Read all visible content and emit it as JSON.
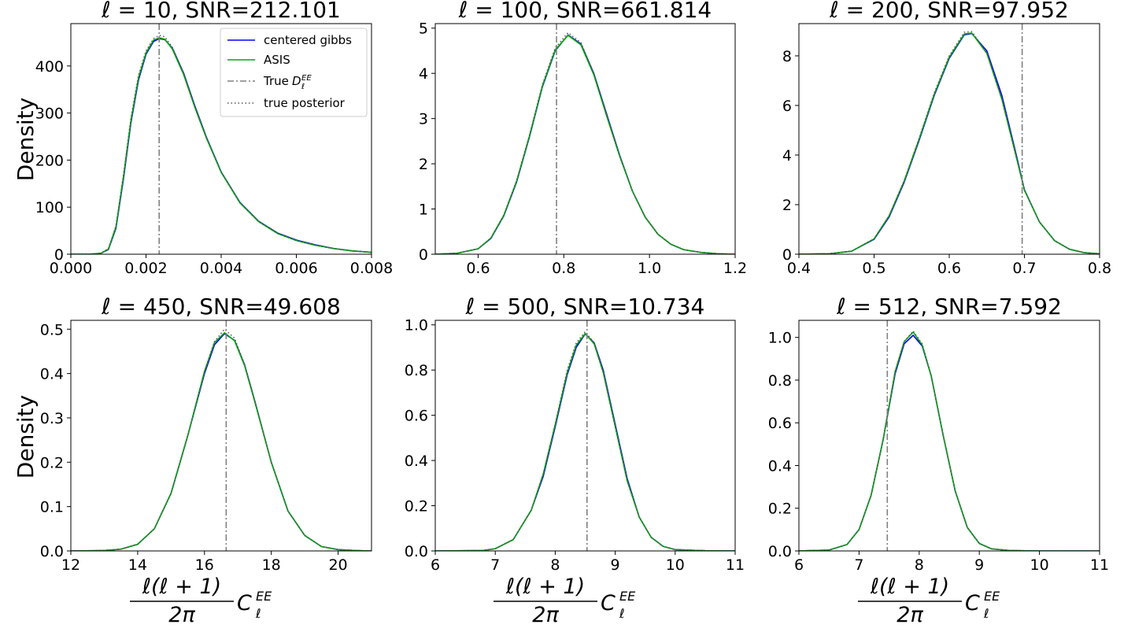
{
  "figure": {
    "ylabel": "Density",
    "xlabel": {
      "frac_num": "ℓ(ℓ + 1)",
      "frac_den": "2π",
      "sym": "C",
      "sup": "EE",
      "sub": "ℓ"
    },
    "legend": {
      "placement": "upper-right of first panel",
      "entries": [
        {
          "label": "centered gibbs",
          "color": "#0000ff",
          "style": "solid"
        },
        {
          "label": "ASIS",
          "color": "#00aa00",
          "style": "solid"
        },
        {
          "label": "True ",
          "math_sym": "D",
          "math_sub": "ℓ",
          "math_sup": "EE",
          "color": "#808080",
          "style": "dashdot"
        },
        {
          "label": "true posterior",
          "color": "#555555",
          "style": "dotted"
        }
      ]
    }
  },
  "chart_data": [
    {
      "type": "line",
      "title": "ℓ = 10, SNR=212.101",
      "xlim": [
        0.0,
        0.008
      ],
      "ylim": [
        0,
        490
      ],
      "xticks": [
        0.0,
        0.002,
        0.004,
        0.006,
        0.008
      ],
      "xtick_labels": [
        "0.000",
        "0.002",
        "0.004",
        "0.006",
        "0.008"
      ],
      "yticks": [
        0,
        100,
        200,
        300,
        400
      ],
      "ytick_labels": [
        "0",
        "100",
        "200",
        "300",
        "400"
      ],
      "true_value": 0.00235,
      "series": [
        {
          "name": "centered gibbs",
          "x": [
            0.0,
            0.0005,
            0.0008,
            0.001,
            0.0012,
            0.0014,
            0.0016,
            0.0018,
            0.002,
            0.0022,
            0.00235,
            0.0025,
            0.0027,
            0.003,
            0.0033,
            0.0036,
            0.004,
            0.0045,
            0.005,
            0.0055,
            0.006,
            0.0065,
            0.007,
            0.0075,
            0.008
          ],
          "y": [
            0,
            0,
            2,
            10,
            55,
            160,
            280,
            370,
            425,
            452,
            458,
            456,
            438,
            385,
            315,
            250,
            175,
            110,
            70,
            45,
            30,
            20,
            12,
            7,
            4
          ]
        },
        {
          "name": "ASIS",
          "x": [
            0.0,
            0.0005,
            0.0008,
            0.001,
            0.0012,
            0.0014,
            0.0016,
            0.0018,
            0.002,
            0.0022,
            0.00235,
            0.0025,
            0.0027,
            0.003,
            0.0033,
            0.0036,
            0.004,
            0.0045,
            0.005,
            0.0055,
            0.006,
            0.0065,
            0.007,
            0.0075,
            0.008
          ],
          "y": [
            0,
            0,
            2,
            11,
            58,
            165,
            285,
            375,
            428,
            455,
            460,
            457,
            436,
            382,
            312,
            248,
            174,
            109,
            69,
            44,
            29,
            19,
            12,
            7,
            4
          ]
        },
        {
          "name": "true posterior",
          "x": [
            0.0,
            0.0005,
            0.0008,
            0.001,
            0.0012,
            0.0014,
            0.0016,
            0.0018,
            0.002,
            0.0022,
            0.00235,
            0.0025,
            0.0027,
            0.003,
            0.0033,
            0.0036,
            0.004,
            0.0045,
            0.005,
            0.0055,
            0.006,
            0.0065,
            0.007,
            0.0075,
            0.008
          ],
          "y": [
            0,
            0,
            2,
            12,
            60,
            168,
            290,
            380,
            432,
            458,
            465,
            462,
            440,
            385,
            313,
            249,
            174,
            109,
            69,
            44,
            29,
            19,
            12,
            7,
            4
          ]
        }
      ]
    },
    {
      "type": "line",
      "title": "ℓ = 100, SNR=661.814",
      "xlim": [
        0.5,
        1.2
      ],
      "ylim": [
        0,
        5.1
      ],
      "xticks": [
        0.6,
        0.8,
        1.0,
        1.2
      ],
      "xtick_labels": [
        "0.6",
        "0.8",
        "1.0",
        "1.2"
      ],
      "yticks": [
        0,
        1,
        2,
        3,
        4,
        5
      ],
      "ytick_labels": [
        "0",
        "1",
        "2",
        "3",
        "4",
        "5"
      ],
      "true_value": 0.783,
      "series": [
        {
          "name": "centered gibbs",
          "x": [
            0.5,
            0.55,
            0.6,
            0.63,
            0.66,
            0.69,
            0.72,
            0.75,
            0.78,
            0.81,
            0.84,
            0.87,
            0.9,
            0.93,
            0.96,
            0.99,
            1.02,
            1.05,
            1.08,
            1.12,
            1.16,
            1.2
          ],
          "y": [
            0,
            0.02,
            0.12,
            0.35,
            0.85,
            1.6,
            2.6,
            3.7,
            4.5,
            4.85,
            4.65,
            4.0,
            3.1,
            2.2,
            1.4,
            0.82,
            0.44,
            0.22,
            0.1,
            0.04,
            0.01,
            0
          ]
        },
        {
          "name": "ASIS",
          "x": [
            0.5,
            0.55,
            0.6,
            0.63,
            0.66,
            0.69,
            0.72,
            0.75,
            0.78,
            0.81,
            0.84,
            0.87,
            0.9,
            0.93,
            0.96,
            0.99,
            1.02,
            1.05,
            1.08,
            1.12,
            1.16,
            1.2
          ],
          "y": [
            0,
            0.02,
            0.12,
            0.36,
            0.86,
            1.62,
            2.62,
            3.72,
            4.52,
            4.84,
            4.63,
            3.97,
            3.06,
            2.18,
            1.4,
            0.82,
            0.44,
            0.22,
            0.1,
            0.04,
            0.01,
            0
          ]
        },
        {
          "name": "true posterior",
          "x": [
            0.5,
            0.55,
            0.6,
            0.63,
            0.66,
            0.69,
            0.72,
            0.75,
            0.78,
            0.81,
            0.84,
            0.87,
            0.9,
            0.93,
            0.96,
            0.99,
            1.02,
            1.05,
            1.08,
            1.12,
            1.16,
            1.2
          ],
          "y": [
            0,
            0.02,
            0.12,
            0.36,
            0.87,
            1.63,
            2.64,
            3.75,
            4.56,
            4.9,
            4.68,
            4.0,
            3.08,
            2.18,
            1.4,
            0.82,
            0.44,
            0.22,
            0.1,
            0.04,
            0.01,
            0
          ]
        }
      ]
    },
    {
      "type": "line",
      "title": "ℓ = 200, SNR=97.952",
      "xlim": [
        0.4,
        0.8
      ],
      "ylim": [
        0,
        9.3
      ],
      "xticks": [
        0.4,
        0.5,
        0.6,
        0.7,
        0.8
      ],
      "xtick_labels": [
        "0.4",
        "0.5",
        "0.6",
        "0.7",
        "0.8"
      ],
      "yticks": [
        0,
        2,
        4,
        6,
        8
      ],
      "ytick_labels": [
        "0",
        "2",
        "4",
        "6",
        "8"
      ],
      "true_value": 0.697,
      "series": [
        {
          "name": "centered gibbs",
          "x": [
            0.4,
            0.44,
            0.47,
            0.5,
            0.52,
            0.54,
            0.56,
            0.58,
            0.6,
            0.62,
            0.63,
            0.65,
            0.67,
            0.69,
            0.7,
            0.72,
            0.74,
            0.76,
            0.78,
            0.8
          ],
          "y": [
            0,
            0.02,
            0.12,
            0.6,
            1.5,
            2.9,
            4.6,
            6.4,
            7.9,
            8.85,
            8.9,
            8.2,
            6.4,
            3.9,
            2.6,
            1.3,
            0.55,
            0.2,
            0.06,
            0.02
          ]
        },
        {
          "name": "ASIS",
          "x": [
            0.4,
            0.44,
            0.47,
            0.5,
            0.52,
            0.54,
            0.56,
            0.58,
            0.6,
            0.62,
            0.63,
            0.65,
            0.67,
            0.69,
            0.7,
            0.72,
            0.74,
            0.76,
            0.78,
            0.8
          ],
          "y": [
            0,
            0.02,
            0.12,
            0.62,
            1.55,
            2.95,
            4.65,
            6.45,
            7.95,
            8.88,
            8.92,
            8.1,
            6.25,
            3.82,
            2.58,
            1.3,
            0.55,
            0.2,
            0.06,
            0.02
          ]
        },
        {
          "name": "true posterior",
          "x": [
            0.4,
            0.44,
            0.47,
            0.5,
            0.52,
            0.54,
            0.56,
            0.58,
            0.6,
            0.62,
            0.63,
            0.65,
            0.67,
            0.69,
            0.7,
            0.72,
            0.74,
            0.76,
            0.78,
            0.8
          ],
          "y": [
            0,
            0.02,
            0.12,
            0.62,
            1.55,
            2.96,
            4.68,
            6.5,
            8.0,
            8.95,
            8.98,
            8.12,
            6.26,
            3.83,
            2.58,
            1.3,
            0.55,
            0.2,
            0.06,
            0.02
          ]
        }
      ]
    },
    {
      "type": "line",
      "title": "ℓ = 450, SNR=49.608",
      "xlim": [
        12,
        21
      ],
      "ylim": [
        0,
        0.52
      ],
      "xticks": [
        12,
        14,
        16,
        18,
        20
      ],
      "xtick_labels": [
        "12",
        "14",
        "16",
        "18",
        "20"
      ],
      "yticks": [
        0.0,
        0.1,
        0.2,
        0.3,
        0.4,
        0.5
      ],
      "ytick_labels": [
        "0.0",
        "0.1",
        "0.2",
        "0.3",
        "0.4",
        "0.5"
      ],
      "true_value": 16.65,
      "series": [
        {
          "name": "centered gibbs",
          "x": [
            12,
            13,
            13.5,
            14,
            14.5,
            15,
            15.5,
            16,
            16.3,
            16.6,
            16.9,
            17.2,
            17.5,
            18,
            18.5,
            19,
            19.5,
            20,
            20.5,
            21
          ],
          "y": [
            0,
            0.001,
            0.004,
            0.015,
            0.05,
            0.13,
            0.26,
            0.4,
            0.465,
            0.49,
            0.475,
            0.42,
            0.34,
            0.2,
            0.09,
            0.035,
            0.01,
            0.003,
            0.001,
            0
          ]
        },
        {
          "name": "ASIS",
          "x": [
            12,
            13,
            13.5,
            14,
            14.5,
            15,
            15.5,
            16,
            16.3,
            16.6,
            16.9,
            17.2,
            17.5,
            18,
            18.5,
            19,
            19.5,
            20,
            20.5,
            21
          ],
          "y": [
            0,
            0.001,
            0.004,
            0.015,
            0.05,
            0.13,
            0.26,
            0.405,
            0.47,
            0.492,
            0.474,
            0.418,
            0.338,
            0.2,
            0.09,
            0.035,
            0.01,
            0.003,
            0.001,
            0
          ]
        },
        {
          "name": "true posterior",
          "x": [
            12,
            13,
            13.5,
            14,
            14.5,
            15,
            15.5,
            16,
            16.3,
            16.6,
            16.9,
            17.2,
            17.5,
            18,
            18.5,
            19,
            19.5,
            20,
            20.5,
            21
          ],
          "y": [
            0,
            0.001,
            0.004,
            0.015,
            0.05,
            0.13,
            0.26,
            0.405,
            0.472,
            0.5,
            0.48,
            0.42,
            0.34,
            0.2,
            0.09,
            0.035,
            0.01,
            0.003,
            0.001,
            0
          ]
        }
      ]
    },
    {
      "type": "line",
      "title": "ℓ = 500, SNR=10.734",
      "xlim": [
        6,
        11
      ],
      "ylim": [
        0,
        1.02
      ],
      "xticks": [
        6,
        7,
        8,
        9,
        10,
        11
      ],
      "xtick_labels": [
        "6",
        "7",
        "8",
        "9",
        "10",
        "11"
      ],
      "yticks": [
        0.0,
        0.2,
        0.4,
        0.6,
        0.8,
        1.0
      ],
      "ytick_labels": [
        "0.0",
        "0.2",
        "0.4",
        "0.6",
        "0.8",
        "1.0"
      ],
      "true_value": 8.53,
      "series": [
        {
          "name": "centered gibbs",
          "x": [
            6,
            6.8,
            7.0,
            7.3,
            7.6,
            7.8,
            8.0,
            8.2,
            8.35,
            8.5,
            8.65,
            8.8,
            9.0,
            9.2,
            9.4,
            9.6,
            9.8,
            10.0,
            10.5,
            11
          ],
          "y": [
            0,
            0.002,
            0.01,
            0.05,
            0.18,
            0.33,
            0.55,
            0.78,
            0.9,
            0.96,
            0.92,
            0.8,
            0.56,
            0.32,
            0.15,
            0.06,
            0.02,
            0.006,
            0.001,
            0
          ]
        },
        {
          "name": "ASIS",
          "x": [
            6,
            6.8,
            7.0,
            7.3,
            7.6,
            7.8,
            8.0,
            8.2,
            8.35,
            8.5,
            8.65,
            8.8,
            9.0,
            9.2,
            9.4,
            9.6,
            9.8,
            10.0,
            10.5,
            11
          ],
          "y": [
            0,
            0.002,
            0.01,
            0.05,
            0.18,
            0.34,
            0.56,
            0.79,
            0.91,
            0.962,
            0.915,
            0.79,
            0.55,
            0.31,
            0.15,
            0.06,
            0.02,
            0.006,
            0.001,
            0
          ]
        },
        {
          "name": "true posterior",
          "x": [
            6,
            6.8,
            7.0,
            7.3,
            7.6,
            7.8,
            8.0,
            8.2,
            8.35,
            8.5,
            8.65,
            8.8,
            9.0,
            9.2,
            9.4,
            9.6,
            9.8,
            10.0,
            10.5,
            11
          ],
          "y": [
            0,
            0.002,
            0.01,
            0.05,
            0.18,
            0.34,
            0.56,
            0.8,
            0.92,
            0.97,
            0.92,
            0.79,
            0.55,
            0.31,
            0.15,
            0.06,
            0.02,
            0.006,
            0.001,
            0
          ]
        }
      ]
    },
    {
      "type": "line",
      "title": "ℓ = 512, SNR=7.592",
      "xlim": [
        6,
        11
      ],
      "ylim": [
        0,
        1.08
      ],
      "xticks": [
        6,
        7,
        8,
        9,
        10,
        11
      ],
      "xtick_labels": [
        "6",
        "7",
        "8",
        "9",
        "10",
        "11"
      ],
      "yticks": [
        0.0,
        0.2,
        0.4,
        0.6,
        0.8,
        1.0
      ],
      "ytick_labels": [
        "0.0",
        "0.2",
        "0.4",
        "0.6",
        "0.8",
        "1.0"
      ],
      "true_value": 7.47,
      "series": [
        {
          "name": "centered gibbs",
          "x": [
            6,
            6.5,
            6.8,
            7.0,
            7.2,
            7.4,
            7.6,
            7.75,
            7.9,
            8.05,
            8.2,
            8.4,
            8.6,
            8.8,
            9.0,
            9.2,
            9.5,
            10,
            11
          ],
          "y": [
            0,
            0.004,
            0.03,
            0.1,
            0.26,
            0.52,
            0.83,
            0.97,
            1.01,
            0.96,
            0.82,
            0.54,
            0.28,
            0.11,
            0.035,
            0.01,
            0.002,
            0,
            0
          ]
        },
        {
          "name": "ASIS",
          "x": [
            6,
            6.5,
            6.8,
            7.0,
            7.2,
            7.4,
            7.6,
            7.75,
            7.9,
            8.05,
            8.2,
            8.4,
            8.6,
            8.8,
            9.0,
            9.2,
            9.5,
            10,
            11
          ],
          "y": [
            0,
            0.004,
            0.03,
            0.1,
            0.26,
            0.52,
            0.84,
            0.98,
            1.025,
            0.965,
            0.82,
            0.54,
            0.28,
            0.11,
            0.035,
            0.01,
            0.002,
            0,
            0
          ]
        },
        {
          "name": "true posterior",
          "x": [
            6,
            6.5,
            6.8,
            7.0,
            7.2,
            7.4,
            7.6,
            7.75,
            7.9,
            8.05,
            8.2,
            8.4,
            8.6,
            8.8,
            9.0,
            9.2,
            9.5,
            10,
            11
          ],
          "y": [
            0,
            0.004,
            0.03,
            0.1,
            0.26,
            0.52,
            0.84,
            0.98,
            1.03,
            0.97,
            0.82,
            0.54,
            0.28,
            0.11,
            0.035,
            0.01,
            0.002,
            0,
            0
          ]
        }
      ]
    }
  ]
}
